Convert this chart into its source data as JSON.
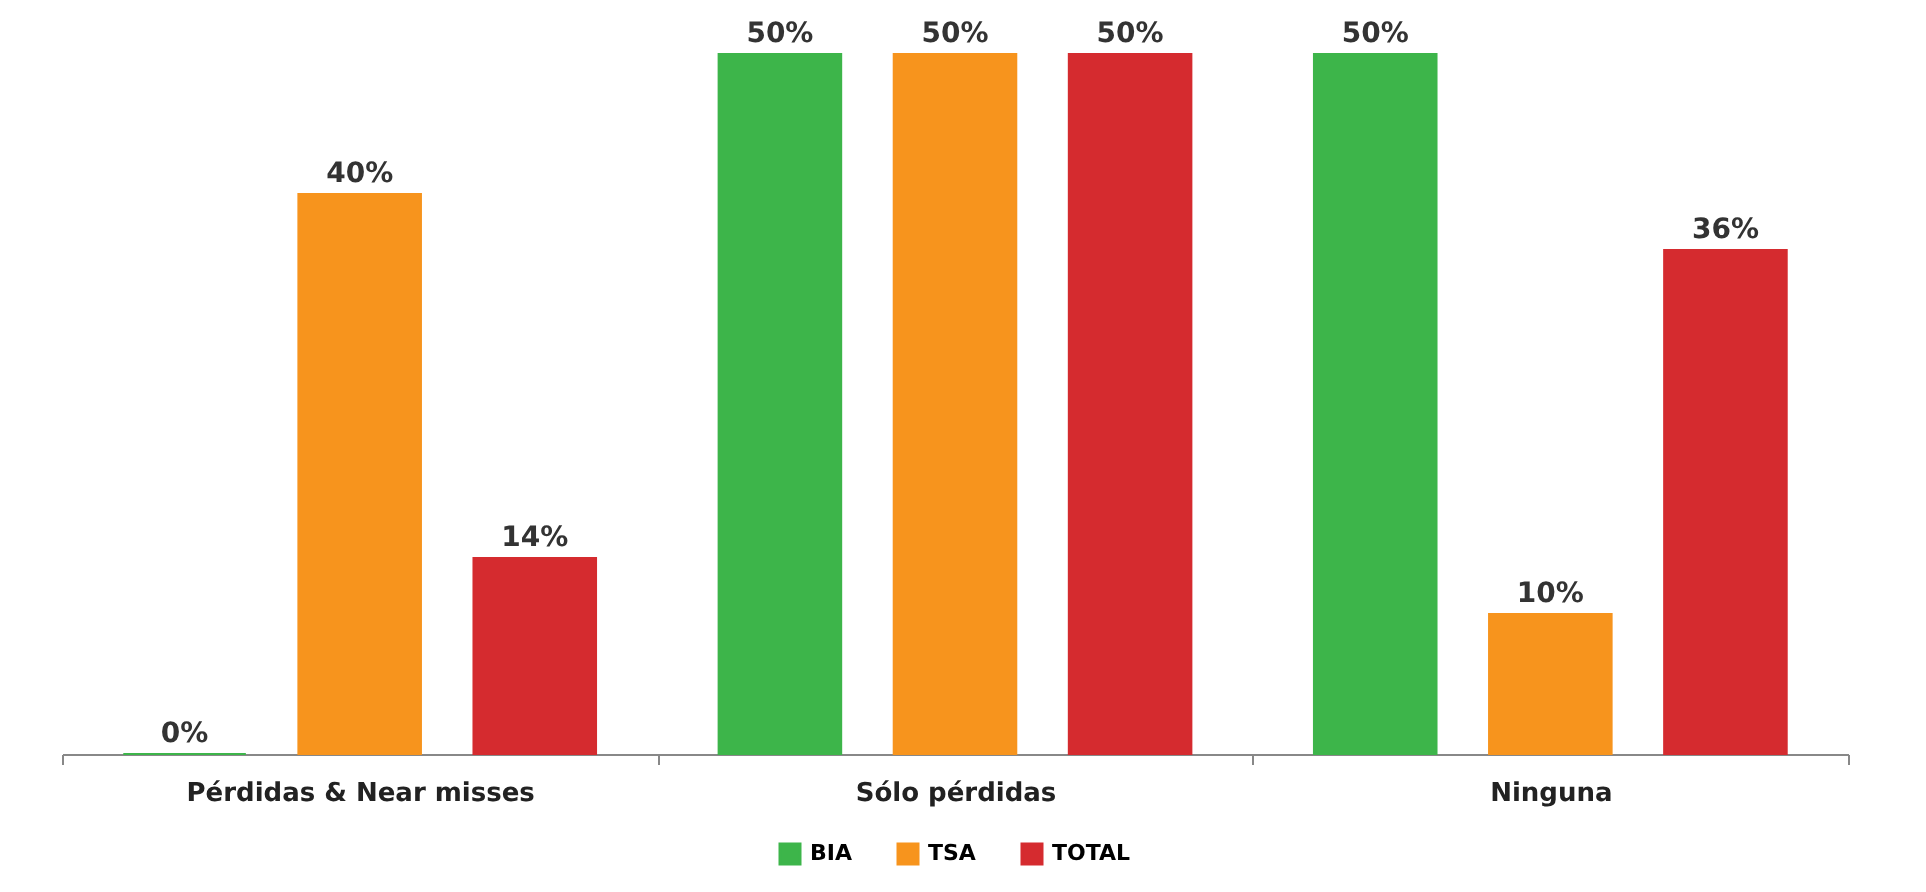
{
  "chart_data": {
    "type": "bar",
    "categories": [
      "Pérdidas & Near misses",
      "Sólo pérdidas",
      "Ninguna"
    ],
    "series": [
      {
        "name": "BIA",
        "color": "#3db54a",
        "values": [
          0,
          50,
          50
        ],
        "value_labels": [
          "0%",
          "50%",
          "50%"
        ]
      },
      {
        "name": "TSA",
        "color": "#f7941d",
        "values": [
          40,
          50,
          10
        ],
        "value_labels": [
          "40%",
          "50%",
          "10%"
        ]
      },
      {
        "name": "TOTAL",
        "color": "#d52b2f",
        "values": [
          14,
          50,
          36
        ],
        "value_labels": [
          "14%",
          "50%",
          "36%"
        ]
      }
    ],
    "legend": "bottom",
    "grid": false
  }
}
